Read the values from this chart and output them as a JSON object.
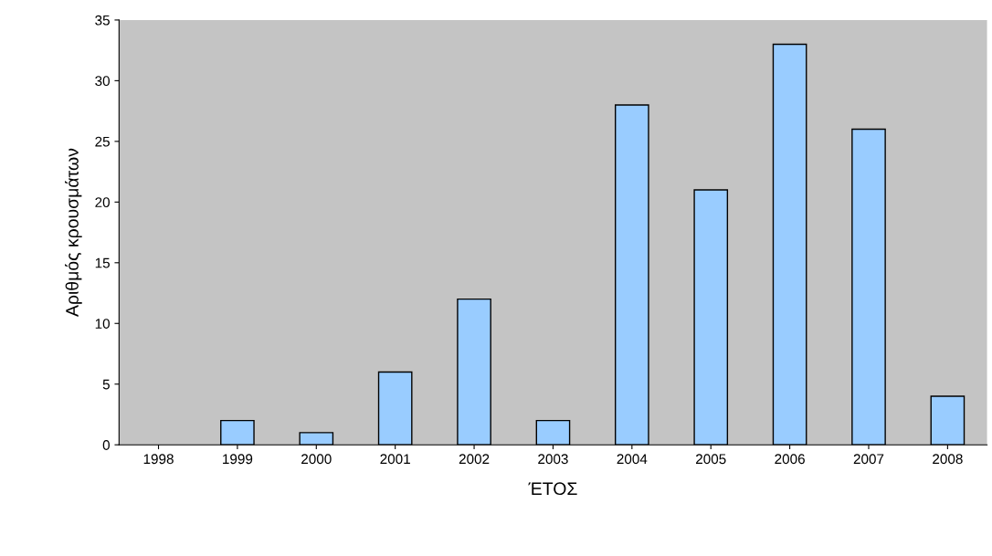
{
  "chart_data": {
    "type": "bar",
    "xlabel": "ΈΤΟΣ",
    "ylabel": "Αριθμός κρουσμάτων",
    "categories": [
      "1998",
      "1999",
      "2000",
      "2001",
      "2002",
      "2003",
      "2004",
      "2005",
      "2006",
      "2007",
      "2008"
    ],
    "values": [
      0,
      2,
      1,
      6,
      12,
      2,
      28,
      21,
      33,
      26,
      4
    ],
    "color": "#99ccff",
    "ylim": [
      0,
      35
    ],
    "yticks": [
      0,
      5,
      10,
      15,
      20,
      25,
      30,
      35
    ],
    "grid": false,
    "legend": false
  }
}
